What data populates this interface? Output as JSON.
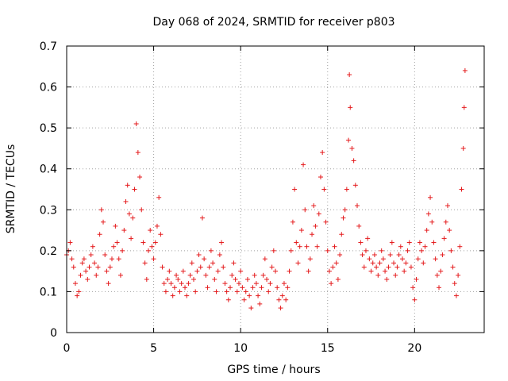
{
  "chart_data": {
    "type": "scatter",
    "title": "Day 068 of 2024, SRMTID for receiver p803",
    "xlabel": "GPS time / hours",
    "ylabel": "SRMTID / TECUs",
    "xlim": [
      0,
      24
    ],
    "ylim": [
      0,
      0.7
    ],
    "x_ticks": [
      0,
      5,
      10,
      15,
      20
    ],
    "x_tick_labels": [
      "0",
      "5",
      "10",
      "15",
      "20"
    ],
    "y_ticks": [
      0,
      0.1,
      0.2,
      0.3,
      0.4,
      0.5,
      0.6,
      0.7
    ],
    "y_tick_labels": [
      "0",
      "0.1",
      "0.2",
      "0.3",
      "0.4",
      "0.5",
      "0.6",
      "0.7"
    ],
    "grid": true,
    "marker": "+",
    "series": [
      {
        "name": "SRMTID",
        "color": "#e41a1c",
        "points": [
          [
            0.0,
            0.19
          ],
          [
            0.1,
            0.2
          ],
          [
            0.2,
            0.22
          ],
          [
            0.3,
            0.18
          ],
          [
            0.4,
            0.16
          ],
          [
            0.5,
            0.12
          ],
          [
            0.6,
            0.09
          ],
          [
            0.7,
            0.1
          ],
          [
            0.8,
            0.14
          ],
          [
            0.9,
            0.17
          ],
          [
            1.0,
            0.18
          ],
          [
            1.1,
            0.15
          ],
          [
            1.2,
            0.13
          ],
          [
            1.3,
            0.16
          ],
          [
            1.4,
            0.19
          ],
          [
            1.5,
            0.21
          ],
          [
            1.6,
            0.17
          ],
          [
            1.7,
            0.14
          ],
          [
            1.8,
            0.16
          ],
          [
            1.9,
            0.24
          ],
          [
            2.0,
            0.3
          ],
          [
            2.1,
            0.27
          ],
          [
            2.2,
            0.19
          ],
          [
            2.3,
            0.15
          ],
          [
            2.4,
            0.12
          ],
          [
            2.5,
            0.16
          ],
          [
            2.6,
            0.18
          ],
          [
            2.7,
            0.21
          ],
          [
            2.8,
            0.26
          ],
          [
            2.9,
            0.22
          ],
          [
            3.0,
            0.18
          ],
          [
            3.1,
            0.14
          ],
          [
            3.2,
            0.2
          ],
          [
            3.3,
            0.25
          ],
          [
            3.4,
            0.32
          ],
          [
            3.5,
            0.36
          ],
          [
            3.6,
            0.29
          ],
          [
            3.7,
            0.23
          ],
          [
            3.8,
            0.28
          ],
          [
            3.9,
            0.35
          ],
          [
            4.0,
            0.51
          ],
          [
            4.1,
            0.44
          ],
          [
            4.2,
            0.38
          ],
          [
            4.3,
            0.3
          ],
          [
            4.4,
            0.22
          ],
          [
            4.5,
            0.17
          ],
          [
            4.6,
            0.13
          ],
          [
            4.7,
            0.2
          ],
          [
            4.8,
            0.25
          ],
          [
            4.9,
            0.21
          ],
          [
            5.0,
            0.18
          ],
          [
            5.1,
            0.22
          ],
          [
            5.2,
            0.26
          ],
          [
            5.3,
            0.33
          ],
          [
            5.4,
            0.24
          ],
          [
            5.5,
            0.16
          ],
          [
            5.6,
            0.12
          ],
          [
            5.7,
            0.1
          ],
          [
            5.8,
            0.13
          ],
          [
            5.9,
            0.15
          ],
          [
            6.0,
            0.12
          ],
          [
            6.1,
            0.09
          ],
          [
            6.2,
            0.11
          ],
          [
            6.3,
            0.14
          ],
          [
            6.4,
            0.13
          ],
          [
            6.5,
            0.1
          ],
          [
            6.6,
            0.12
          ],
          [
            6.7,
            0.15
          ],
          [
            6.8,
            0.11
          ],
          [
            6.9,
            0.09
          ],
          [
            7.0,
            0.12
          ],
          [
            7.1,
            0.14
          ],
          [
            7.2,
            0.17
          ],
          [
            7.3,
            0.13
          ],
          [
            7.4,
            0.1
          ],
          [
            7.5,
            0.15
          ],
          [
            7.6,
            0.19
          ],
          [
            7.7,
            0.16
          ],
          [
            7.8,
            0.28
          ],
          [
            7.9,
            0.18
          ],
          [
            8.0,
            0.14
          ],
          [
            8.1,
            0.11
          ],
          [
            8.2,
            0.16
          ],
          [
            8.3,
            0.2
          ],
          [
            8.4,
            0.17
          ],
          [
            8.5,
            0.13
          ],
          [
            8.6,
            0.1
          ],
          [
            8.7,
            0.15
          ],
          [
            8.8,
            0.19
          ],
          [
            8.9,
            0.22
          ],
          [
            9.0,
            0.16
          ],
          [
            9.1,
            0.12
          ],
          [
            9.2,
            0.1
          ],
          [
            9.3,
            0.08
          ],
          [
            9.4,
            0.11
          ],
          [
            9.5,
            0.14
          ],
          [
            9.6,
            0.17
          ],
          [
            9.7,
            0.13
          ],
          [
            9.8,
            0.1
          ],
          [
            9.9,
            0.12
          ],
          [
            10.0,
            0.15
          ],
          [
            10.1,
            0.11
          ],
          [
            10.2,
            0.08
          ],
          [
            10.3,
            0.1
          ],
          [
            10.4,
            0.13
          ],
          [
            10.5,
            0.09
          ],
          [
            10.6,
            0.06
          ],
          [
            10.7,
            0.11
          ],
          [
            10.8,
            0.14
          ],
          [
            10.9,
            0.12
          ],
          [
            11.0,
            0.09
          ],
          [
            11.1,
            0.07
          ],
          [
            11.2,
            0.11
          ],
          [
            11.3,
            0.14
          ],
          [
            11.4,
            0.18
          ],
          [
            11.5,
            0.13
          ],
          [
            11.6,
            0.1
          ],
          [
            11.7,
            0.12
          ],
          [
            11.8,
            0.16
          ],
          [
            11.9,
            0.2
          ],
          [
            12.0,
            0.15
          ],
          [
            12.1,
            0.11
          ],
          [
            12.2,
            0.08
          ],
          [
            12.3,
            0.06
          ],
          [
            12.4,
            0.09
          ],
          [
            12.5,
            0.12
          ],
          [
            12.6,
            0.08
          ],
          [
            12.7,
            0.11
          ],
          [
            12.8,
            0.15
          ],
          [
            12.9,
            0.2
          ],
          [
            13.0,
            0.27
          ],
          [
            13.1,
            0.35
          ],
          [
            13.2,
            0.22
          ],
          [
            13.3,
            0.17
          ],
          [
            13.4,
            0.21
          ],
          [
            13.5,
            0.25
          ],
          [
            13.6,
            0.41
          ],
          [
            13.7,
            0.3
          ],
          [
            13.8,
            0.21
          ],
          [
            13.9,
            0.15
          ],
          [
            14.0,
            0.18
          ],
          [
            14.1,
            0.24
          ],
          [
            14.2,
            0.31
          ],
          [
            14.3,
            0.26
          ],
          [
            14.4,
            0.21
          ],
          [
            14.5,
            0.29
          ],
          [
            14.6,
            0.38
          ],
          [
            14.7,
            0.44
          ],
          [
            14.8,
            0.35
          ],
          [
            14.9,
            0.27
          ],
          [
            15.0,
            0.2
          ],
          [
            15.1,
            0.15
          ],
          [
            15.2,
            0.12
          ],
          [
            15.3,
            0.16
          ],
          [
            15.4,
            0.21
          ],
          [
            15.5,
            0.17
          ],
          [
            15.6,
            0.13
          ],
          [
            15.7,
            0.19
          ],
          [
            15.8,
            0.24
          ],
          [
            15.9,
            0.28
          ],
          [
            16.0,
            0.3
          ],
          [
            16.1,
            0.35
          ],
          [
            16.2,
            0.47
          ],
          [
            16.25,
            0.63
          ],
          [
            16.3,
            0.55
          ],
          [
            16.4,
            0.45
          ],
          [
            16.5,
            0.42
          ],
          [
            16.6,
            0.36
          ],
          [
            16.7,
            0.31
          ],
          [
            16.8,
            0.26
          ],
          [
            16.9,
            0.22
          ],
          [
            17.0,
            0.19
          ],
          [
            17.1,
            0.16
          ],
          [
            17.2,
            0.2
          ],
          [
            17.3,
            0.23
          ],
          [
            17.4,
            0.18
          ],
          [
            17.5,
            0.15
          ],
          [
            17.6,
            0.17
          ],
          [
            17.7,
            0.19
          ],
          [
            17.8,
            0.16
          ],
          [
            17.9,
            0.14
          ],
          [
            18.0,
            0.17
          ],
          [
            18.1,
            0.2
          ],
          [
            18.2,
            0.18
          ],
          [
            18.3,
            0.15
          ],
          [
            18.4,
            0.13
          ],
          [
            18.5,
            0.16
          ],
          [
            18.6,
            0.19
          ],
          [
            18.7,
            0.22
          ],
          [
            18.8,
            0.17
          ],
          [
            18.9,
            0.14
          ],
          [
            19.0,
            0.16
          ],
          [
            19.1,
            0.19
          ],
          [
            19.2,
            0.21
          ],
          [
            19.3,
            0.18
          ],
          [
            19.4,
            0.15
          ],
          [
            19.5,
            0.17
          ],
          [
            19.6,
            0.2
          ],
          [
            19.7,
            0.22
          ],
          [
            19.8,
            0.16
          ],
          [
            19.9,
            0.11
          ],
          [
            20.0,
            0.08
          ],
          [
            20.1,
            0.13
          ],
          [
            20.2,
            0.18
          ],
          [
            20.3,
            0.22
          ],
          [
            20.4,
            0.2
          ],
          [
            20.5,
            0.17
          ],
          [
            20.6,
            0.21
          ],
          [
            20.7,
            0.25
          ],
          [
            20.8,
            0.29
          ],
          [
            20.9,
            0.33
          ],
          [
            21.0,
            0.27
          ],
          [
            21.1,
            0.22
          ],
          [
            21.2,
            0.18
          ],
          [
            21.3,
            0.14
          ],
          [
            21.4,
            0.11
          ],
          [
            21.5,
            0.15
          ],
          [
            21.6,
            0.19
          ],
          [
            21.7,
            0.23
          ],
          [
            21.8,
            0.27
          ],
          [
            21.9,
            0.31
          ],
          [
            22.0,
            0.25
          ],
          [
            22.1,
            0.2
          ],
          [
            22.2,
            0.16
          ],
          [
            22.3,
            0.12
          ],
          [
            22.4,
            0.09
          ],
          [
            22.5,
            0.14
          ],
          [
            22.6,
            0.21
          ],
          [
            22.7,
            0.35
          ],
          [
            22.8,
            0.45
          ],
          [
            22.85,
            0.55
          ],
          [
            22.9,
            0.64
          ]
        ]
      }
    ]
  }
}
